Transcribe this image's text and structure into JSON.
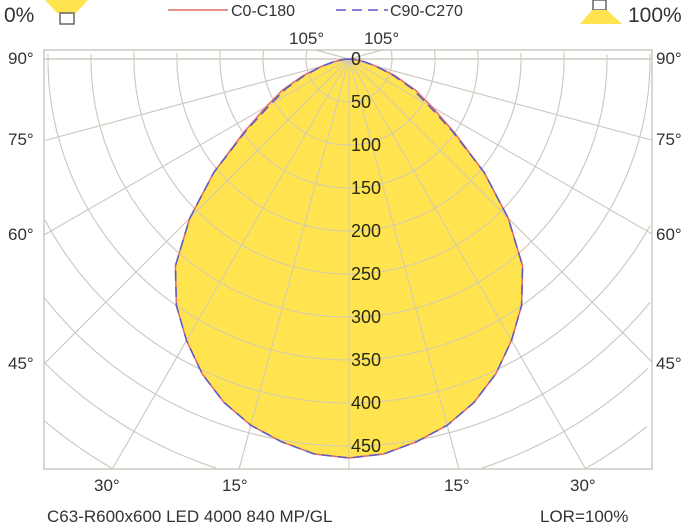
{
  "header": {
    "left_percent": "0%",
    "right_percent": "100%",
    "left_icon": "luminaire-downlight-icon",
    "right_icon": "luminaire-uplight-icon"
  },
  "footer": {
    "title": "C63-R600x600 LED 4000 840 MP/GL",
    "lor": "LOR=100%"
  },
  "chart_data": {
    "type": "polar-line",
    "unit_rings": [
      "0",
      "50",
      "100",
      "150",
      "200",
      "250",
      "300",
      "350",
      "400",
      "450"
    ],
    "angle_labels": {
      "left": [
        "90°",
        "75°",
        "60°",
        "45°"
      ],
      "bottom": [
        "30°",
        "15°",
        "15°",
        "30°"
      ],
      "top": [
        "105°",
        "105°"
      ]
    },
    "angle_step_deg": 15,
    "ring_step": 50,
    "grid": true,
    "legend_placement": "top",
    "colors": {
      "fill": "#FFE34F",
      "c0": "#E06A6A",
      "c90": "#5A5AC8",
      "grid": "#CEC8C0"
    },
    "angles_deg": [
      0,
      5,
      10,
      15,
      20,
      25,
      30,
      35,
      40,
      45,
      50,
      55,
      60,
      65,
      70,
      75,
      80,
      85,
      90
    ],
    "series": [
      {
        "name": "C0-C180",
        "style": "solid",
        "values": [
          464,
          461,
          452,
          441,
          425,
          404,
          378,
          350,
          314,
          262,
          205,
          150,
          112,
          85,
          57,
          33,
          18,
          7,
          0
        ]
      },
      {
        "name": "C90-C270",
        "style": "dashed",
        "values": [
          464,
          461,
          452,
          441,
          425,
          404,
          378,
          350,
          314,
          262,
          205,
          147,
          106,
          80,
          54,
          32,
          18,
          7,
          0
        ]
      }
    ]
  }
}
